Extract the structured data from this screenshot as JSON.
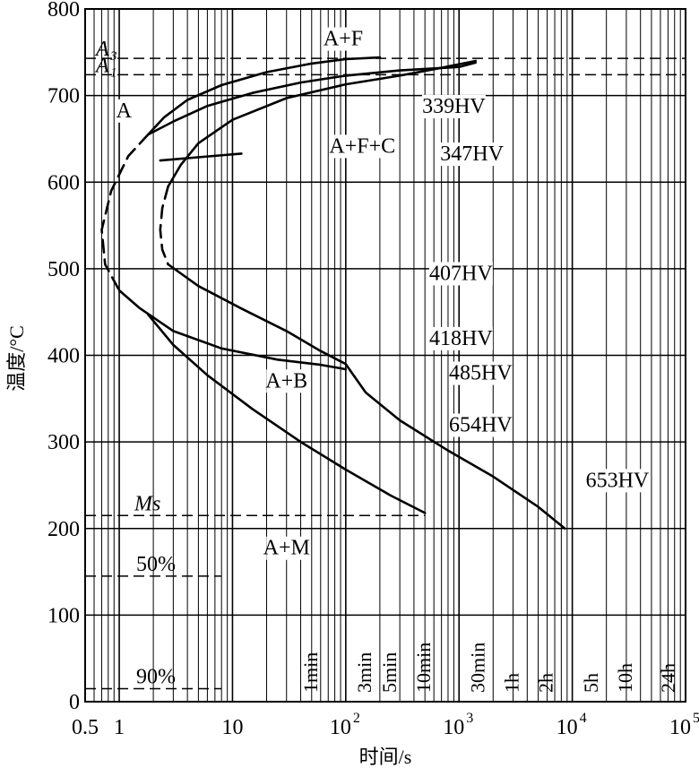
{
  "chart_data": {
    "type": "line",
    "title": "",
    "xlabel": "时间/s",
    "ylabel": "温度/°C",
    "x_scale": "log",
    "xlim": [
      0.5,
      100000
    ],
    "ylim": [
      0,
      800
    ],
    "grid": true,
    "x_ticks": [
      {
        "value": 0.5,
        "label": "0.5"
      },
      {
        "value": 1,
        "label": "1"
      },
      {
        "value": 10,
        "label": "10"
      },
      {
        "value": 100,
        "base": "10",
        "exp": "2"
      },
      {
        "value": 1000,
        "base": "10",
        "exp": "3"
      },
      {
        "value": 10000,
        "base": "10",
        "exp": "4"
      },
      {
        "value": 100000,
        "base": "10",
        "exp": "5"
      }
    ],
    "y_ticks": [
      0,
      100,
      200,
      300,
      400,
      500,
      600,
      700,
      800
    ],
    "time_markers": [
      {
        "label": "1min",
        "x": 60
      },
      {
        "label": "3min",
        "x": 180
      },
      {
        "label": "5min",
        "x": 300
      },
      {
        "label": "10min",
        "x": 600
      },
      {
        "label": "30min",
        "x": 1800
      },
      {
        "label": "1h",
        "x": 3600
      },
      {
        "label": "2h",
        "x": 7200
      },
      {
        "label": "5h",
        "x": 18000
      },
      {
        "label": "10h",
        "x": 36000
      },
      {
        "label": "24h",
        "x": 86400
      }
    ],
    "reference_lines": [
      {
        "name": "A3",
        "base": "A",
        "sub": "3",
        "y": 743
      },
      {
        "name": "A1",
        "base": "A",
        "sub": "1",
        "y": 724
      },
      {
        "name": "Ms",
        "label": "Ms",
        "y": 215,
        "x_end": 500
      },
      {
        "name": "50%",
        "label": "50%",
        "y": 145,
        "x_end": 8
      },
      {
        "name": "90%",
        "label": "90%",
        "y": 15,
        "x_end": 8
      }
    ],
    "curves": [
      {
        "name": "ferrite-start-upper",
        "dashed": false,
        "points": [
          [
            1.8,
            655
          ],
          [
            2.5,
            675
          ],
          [
            4,
            695
          ],
          [
            8,
            712
          ],
          [
            20,
            727
          ],
          [
            50,
            737
          ],
          [
            100,
            742
          ],
          [
            200,
            744
          ]
        ]
      },
      {
        "name": "ferrite-start-lower",
        "dashed": false,
        "points": [
          [
            1.8,
            655
          ],
          [
            3,
            670
          ],
          [
            6,
            688
          ],
          [
            15,
            703
          ],
          [
            40,
            715
          ],
          [
            100,
            723
          ],
          [
            300,
            729
          ],
          [
            1000,
            733
          ],
          [
            1400,
            738
          ]
        ]
      },
      {
        "name": "pearlite-finish",
        "dashed": false,
        "points": [
          [
            2.7,
            595
          ],
          [
            3.5,
            620
          ],
          [
            5,
            645
          ],
          [
            10,
            672
          ],
          [
            30,
            697
          ],
          [
            100,
            713
          ],
          [
            300,
            723
          ],
          [
            700,
            732
          ],
          [
            1400,
            740
          ]
        ]
      },
      {
        "name": "nose-dashed-1",
        "dashed": true,
        "points": [
          [
            1.8,
            655
          ],
          [
            1.2,
            630
          ],
          [
            0.85,
            590
          ],
          [
            0.7,
            545
          ],
          [
            0.75,
            505
          ],
          [
            1.0,
            475
          ]
        ]
      },
      {
        "name": "nose-dashed-2",
        "dashed": true,
        "points": [
          [
            2.7,
            595
          ],
          [
            2.4,
            570
          ],
          [
            2.3,
            545
          ],
          [
            2.4,
            522
          ],
          [
            2.7,
            505
          ]
        ]
      },
      {
        "name": "bainite-start",
        "dashed": false,
        "points": [
          [
            1.0,
            475
          ],
          [
            1.5,
            455
          ],
          [
            3,
            428
          ],
          [
            8,
            408
          ],
          [
            25,
            395
          ],
          [
            60,
            389
          ],
          [
            100,
            384
          ]
        ]
      },
      {
        "name": "bainite-finish-upper",
        "dashed": false,
        "points": [
          [
            2.7,
            505
          ],
          [
            5,
            480
          ],
          [
            12,
            454
          ],
          [
            30,
            428
          ],
          [
            60,
            405
          ],
          [
            100,
            390
          ],
          [
            110,
            382
          ]
        ]
      },
      {
        "name": "bainite-finish-lower",
        "dashed": false,
        "points": [
          [
            110,
            382
          ],
          [
            150,
            357
          ],
          [
            300,
            325
          ],
          [
            800,
            290
          ],
          [
            2000,
            260
          ],
          [
            5000,
            225
          ],
          [
            8600,
            200
          ]
        ]
      },
      {
        "name": "martensite-path",
        "dashed": false,
        "points": [
          [
            1.8,
            447
          ],
          [
            3,
            412
          ],
          [
            6,
            377
          ],
          [
            15,
            338
          ],
          [
            40,
            300
          ],
          [
            100,
            268
          ],
          [
            250,
            238
          ],
          [
            500,
            218
          ]
        ]
      },
      {
        "name": "ferrite-leader",
        "dashed": false,
        "points": [
          [
            2.3,
            625
          ],
          [
            12,
            633
          ]
        ]
      }
    ],
    "annotations": [
      {
        "text": "A",
        "x": 1.1,
        "y": 675
      },
      {
        "text": "A+F",
        "x": 95,
        "y": 758
      },
      {
        "text": "339HV",
        "x": 900,
        "y": 680
      },
      {
        "text": "A+F+C",
        "x": 140,
        "y": 634
      },
      {
        "text": "347HV",
        "x": 1300,
        "y": 625
      },
      {
        "text": "407HV",
        "x": 1040,
        "y": 487
      },
      {
        "text": "418HV",
        "x": 1040,
        "y": 412
      },
      {
        "text": "485HV",
        "x": 1550,
        "y": 372
      },
      {
        "text": "A+B",
        "x": 30,
        "y": 363
      },
      {
        "text": "654HV",
        "x": 1550,
        "y": 312
      },
      {
        "text": "653HV",
        "x": 25000,
        "y": 248
      },
      {
        "text": "A+M",
        "x": 30,
        "y": 170
      }
    ]
  }
}
